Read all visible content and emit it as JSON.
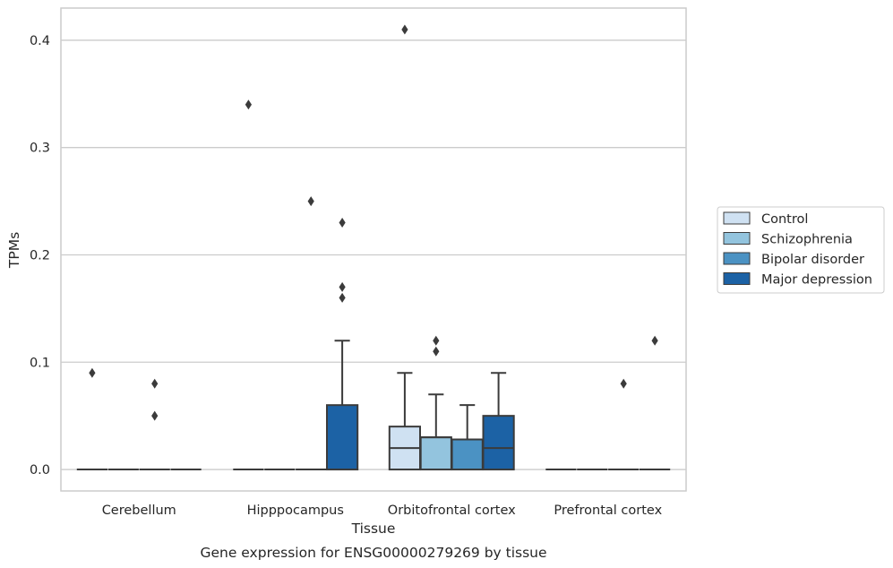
{
  "chart_data": {
    "type": "box",
    "title": "",
    "caption": "Gene expression for ENSG00000279269 by tissue",
    "xlabel": "Tissue",
    "ylabel": "TPMs",
    "ylim": [
      -0.02,
      0.43
    ],
    "yticks": [
      0.0,
      0.1,
      0.2,
      0.3,
      0.4
    ],
    "ytick_labels": [
      "0.0",
      "0.1",
      "0.2",
      "0.3",
      "0.4"
    ],
    "grid": "horizontal",
    "legend_position": "right",
    "categories": [
      "Cerebellum",
      "Hipppocampus",
      "Orbitofrontal cortex",
      "Prefrontal cortex"
    ],
    "series": [
      {
        "name": "Control",
        "color": "#cfe1f2",
        "boxes": [
          {
            "q1": 0,
            "median": 0,
            "q3": 0,
            "whisker_low": 0,
            "whisker_high": 0,
            "outliers": [
              0.09
            ]
          },
          {
            "q1": 0,
            "median": 0,
            "q3": 0,
            "whisker_low": 0,
            "whisker_high": 0,
            "outliers": [
              0.34
            ]
          },
          {
            "q1": 0,
            "median": 0.02,
            "q3": 0.04,
            "whisker_low": 0,
            "whisker_high": 0.09,
            "outliers": [
              0.41
            ]
          },
          {
            "q1": 0,
            "median": 0,
            "q3": 0,
            "whisker_low": 0,
            "whisker_high": 0,
            "outliers": []
          }
        ]
      },
      {
        "name": "Schizophrenia",
        "color": "#93c4de",
        "boxes": [
          {
            "q1": 0,
            "median": 0,
            "q3": 0,
            "whisker_low": 0,
            "whisker_high": 0,
            "outliers": []
          },
          {
            "q1": 0,
            "median": 0,
            "q3": 0,
            "whisker_low": 0,
            "whisker_high": 0,
            "outliers": []
          },
          {
            "q1": 0,
            "median": 0.03,
            "q3": 0.03,
            "whisker_low": 0,
            "whisker_high": 0.07,
            "outliers": [
              0.11,
              0.12
            ]
          },
          {
            "q1": 0,
            "median": 0,
            "q3": 0,
            "whisker_low": 0,
            "whisker_high": 0,
            "outliers": []
          }
        ]
      },
      {
        "name": "Bipolar disorder",
        "color": "#4b92c3",
        "boxes": [
          {
            "q1": 0,
            "median": 0,
            "q3": 0,
            "whisker_low": 0,
            "whisker_high": 0,
            "outliers": [
              0.05,
              0.08
            ]
          },
          {
            "q1": 0,
            "median": 0,
            "q3": 0,
            "whisker_low": 0,
            "whisker_high": 0,
            "outliers": [
              0.25
            ]
          },
          {
            "q1": 0,
            "median": 0.028,
            "q3": 0.028,
            "whisker_low": 0,
            "whisker_high": 0.06,
            "outliers": []
          },
          {
            "q1": 0,
            "median": 0,
            "q3": 0,
            "whisker_low": 0,
            "whisker_high": 0,
            "outliers": [
              0.08
            ]
          }
        ]
      },
      {
        "name": "Major depression",
        "color": "#1c62a5",
        "boxes": [
          {
            "q1": 0,
            "median": 0,
            "q3": 0,
            "whisker_low": 0,
            "whisker_high": 0,
            "outliers": []
          },
          {
            "q1": 0,
            "median": 0,
            "q3": 0.06,
            "whisker_low": 0,
            "whisker_high": 0.12,
            "outliers": [
              0.16,
              0.17,
              0.23
            ]
          },
          {
            "q1": 0,
            "median": 0.02,
            "q3": 0.05,
            "whisker_low": 0,
            "whisker_high": 0.09,
            "outliers": []
          },
          {
            "q1": 0,
            "median": 0,
            "q3": 0,
            "whisker_low": 0,
            "whisker_high": 0,
            "outliers": [
              0.12
            ]
          }
        ]
      }
    ]
  }
}
